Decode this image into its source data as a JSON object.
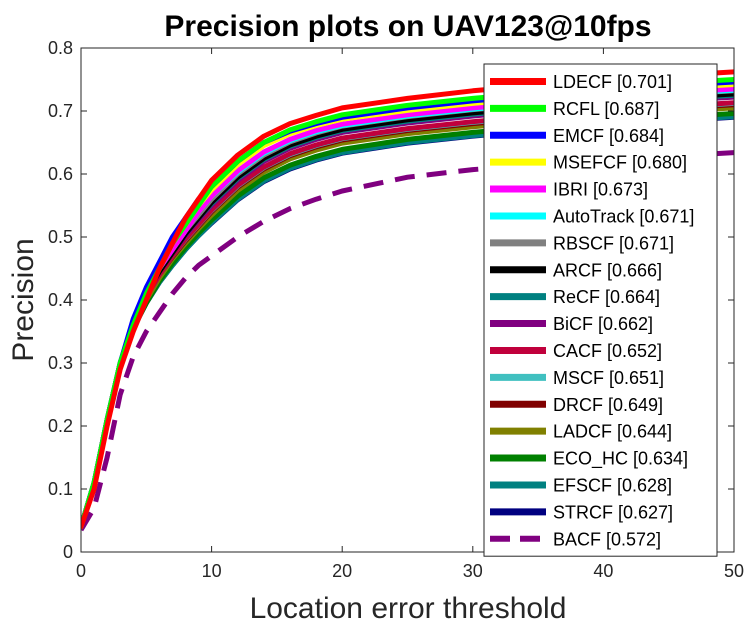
{
  "chart_data": {
    "type": "line",
    "title": "Precision plots on UAV123@10fps",
    "xlabel": "Location error threshold",
    "ylabel": "Precision",
    "xlim": [
      0,
      50
    ],
    "ylim": [
      0,
      0.8
    ],
    "x_ticks": [
      "0",
      "10",
      "20",
      "30",
      "40",
      "50"
    ],
    "y_ticks": [
      "0",
      "0.1",
      "0.2",
      "0.3",
      "0.4",
      "0.5",
      "0.6",
      "0.7",
      "0.8"
    ],
    "grid": false,
    "legend_position": "top-right",
    "x": [
      0,
      1,
      2,
      3,
      4,
      5,
      6,
      7,
      8,
      9,
      10,
      12,
      14,
      16,
      18,
      20,
      25,
      30,
      35,
      40,
      45,
      50
    ],
    "series": [
      {
        "name": "LDECF [0.701]",
        "color": "#ff0000",
        "dash": false,
        "values": [
          0.04,
          0.1,
          0.2,
          0.29,
          0.35,
          0.4,
          0.45,
          0.49,
          0.53,
          0.56,
          0.59,
          0.63,
          0.66,
          0.68,
          0.693,
          0.705,
          0.72,
          0.732,
          0.741,
          0.749,
          0.756,
          0.762
        ]
      },
      {
        "name": "RCFL [0.687]",
        "color": "#00ff00",
        "dash": false,
        "values": [
          0.04,
          0.11,
          0.21,
          0.3,
          0.36,
          0.41,
          0.45,
          0.49,
          0.52,
          0.55,
          0.58,
          0.62,
          0.65,
          0.67,
          0.683,
          0.694,
          0.709,
          0.72,
          0.729,
          0.737,
          0.744,
          0.75
        ]
      },
      {
        "name": "EMCF [0.684]",
        "color": "#0000ff",
        "dash": false,
        "values": [
          0.04,
          0.11,
          0.21,
          0.3,
          0.37,
          0.42,
          0.46,
          0.5,
          0.53,
          0.56,
          0.58,
          0.62,
          0.65,
          0.668,
          0.68,
          0.69,
          0.705,
          0.716,
          0.725,
          0.733,
          0.74,
          0.746
        ]
      },
      {
        "name": "MSEFCF [0.680]",
        "color": "#ffff00",
        "dash": false,
        "values": [
          0.04,
          0.11,
          0.21,
          0.3,
          0.36,
          0.41,
          0.45,
          0.49,
          0.52,
          0.55,
          0.575,
          0.615,
          0.645,
          0.664,
          0.677,
          0.687,
          0.701,
          0.712,
          0.721,
          0.729,
          0.736,
          0.742
        ]
      },
      {
        "name": "IBRI [0.673]",
        "color": "#ff00ff",
        "dash": false,
        "values": [
          0.04,
          0.11,
          0.21,
          0.3,
          0.36,
          0.41,
          0.45,
          0.48,
          0.51,
          0.54,
          0.565,
          0.605,
          0.635,
          0.655,
          0.669,
          0.679,
          0.694,
          0.705,
          0.714,
          0.722,
          0.729,
          0.735
        ]
      },
      {
        "name": "AutoTrack [0.671]",
        "color": "#00ffff",
        "dash": false,
        "values": [
          0.04,
          0.11,
          0.21,
          0.3,
          0.36,
          0.41,
          0.45,
          0.48,
          0.51,
          0.54,
          0.565,
          0.603,
          0.633,
          0.653,
          0.667,
          0.677,
          0.692,
          0.703,
          0.712,
          0.72,
          0.727,
          0.733
        ]
      },
      {
        "name": "RBSCF [0.671]",
        "color": "#808080",
        "dash": false,
        "values": [
          0.04,
          0.11,
          0.21,
          0.3,
          0.36,
          0.41,
          0.45,
          0.48,
          0.51,
          0.535,
          0.56,
          0.6,
          0.63,
          0.651,
          0.665,
          0.676,
          0.691,
          0.702,
          0.711,
          0.719,
          0.726,
          0.732
        ]
      },
      {
        "name": "ARCF [0.666]",
        "color": "#000000",
        "dash": false,
        "values": [
          0.04,
          0.11,
          0.21,
          0.3,
          0.36,
          0.41,
          0.445,
          0.475,
          0.505,
          0.53,
          0.555,
          0.595,
          0.625,
          0.646,
          0.66,
          0.671,
          0.686,
          0.697,
          0.706,
          0.714,
          0.721,
          0.727
        ]
      },
      {
        "name": "ReCF [0.664]",
        "color": "#008080",
        "dash": false,
        "values": [
          0.04,
          0.11,
          0.21,
          0.3,
          0.36,
          0.41,
          0.445,
          0.475,
          0.505,
          0.53,
          0.553,
          0.593,
          0.623,
          0.644,
          0.658,
          0.669,
          0.684,
          0.695,
          0.704,
          0.712,
          0.719,
          0.725
        ]
      },
      {
        "name": "BiCF [0.662]",
        "color": "#800080",
        "dash": false,
        "values": [
          0.04,
          0.11,
          0.21,
          0.3,
          0.36,
          0.41,
          0.445,
          0.475,
          0.502,
          0.527,
          0.55,
          0.59,
          0.62,
          0.641,
          0.655,
          0.666,
          0.681,
          0.692,
          0.701,
          0.709,
          0.716,
          0.722
        ]
      },
      {
        "name": "CACF [0.652]",
        "color": "#c0003c",
        "dash": false,
        "values": [
          0.04,
          0.11,
          0.21,
          0.3,
          0.36,
          0.405,
          0.44,
          0.47,
          0.497,
          0.52,
          0.543,
          0.582,
          0.611,
          0.632,
          0.646,
          0.657,
          0.672,
          0.683,
          0.692,
          0.7,
          0.707,
          0.713
        ]
      },
      {
        "name": "MSCF [0.651]",
        "color": "#40c0c0",
        "dash": false,
        "values": [
          0.04,
          0.11,
          0.21,
          0.3,
          0.36,
          0.405,
          0.44,
          0.47,
          0.496,
          0.519,
          0.542,
          0.581,
          0.61,
          0.631,
          0.645,
          0.656,
          0.671,
          0.682,
          0.691,
          0.699,
          0.706,
          0.712
        ]
      },
      {
        "name": "DRCF [0.649]",
        "color": "#800000",
        "dash": false,
        "values": [
          0.04,
          0.11,
          0.21,
          0.3,
          0.36,
          0.405,
          0.44,
          0.468,
          0.494,
          0.517,
          0.54,
          0.579,
          0.608,
          0.629,
          0.643,
          0.654,
          0.669,
          0.68,
          0.689,
          0.697,
          0.704,
          0.71
        ]
      },
      {
        "name": "LADCF [0.644]",
        "color": "#808000",
        "dash": false,
        "values": [
          0.04,
          0.11,
          0.21,
          0.3,
          0.36,
          0.4,
          0.435,
          0.465,
          0.49,
          0.513,
          0.535,
          0.574,
          0.603,
          0.624,
          0.638,
          0.649,
          0.664,
          0.675,
          0.684,
          0.692,
          0.699,
          0.705
        ]
      },
      {
        "name": "ECO_HC [0.634]",
        "color": "#008000",
        "dash": false,
        "values": [
          0.04,
          0.11,
          0.21,
          0.3,
          0.355,
          0.395,
          0.43,
          0.458,
          0.483,
          0.506,
          0.527,
          0.565,
          0.594,
          0.614,
          0.628,
          0.639,
          0.655,
          0.666,
          0.675,
          0.683,
          0.69,
          0.696
        ]
      },
      {
        "name": "EFSCF [0.628]",
        "color": "#008080",
        "dash": false,
        "values": [
          0.04,
          0.11,
          0.21,
          0.3,
          0.355,
          0.395,
          0.428,
          0.455,
          0.48,
          0.502,
          0.523,
          0.56,
          0.589,
          0.609,
          0.623,
          0.634,
          0.65,
          0.661,
          0.67,
          0.678,
          0.685,
          0.691
        ]
      },
      {
        "name": "STRCF [0.627]",
        "color": "#000080",
        "dash": false,
        "values": [
          0.04,
          0.11,
          0.21,
          0.3,
          0.355,
          0.395,
          0.428,
          0.455,
          0.48,
          0.502,
          0.522,
          0.559,
          0.588,
          0.608,
          0.622,
          0.633,
          0.649,
          0.66,
          0.669,
          0.677,
          0.684,
          0.69
        ]
      },
      {
        "name": "BACF [0.572]",
        "color": "#800080",
        "dash": true,
        "values": [
          0.035,
          0.07,
          0.15,
          0.25,
          0.31,
          0.35,
          0.38,
          0.41,
          0.435,
          0.455,
          0.47,
          0.5,
          0.525,
          0.545,
          0.56,
          0.573,
          0.595,
          0.607,
          0.615,
          0.622,
          0.628,
          0.634
        ]
      }
    ]
  }
}
